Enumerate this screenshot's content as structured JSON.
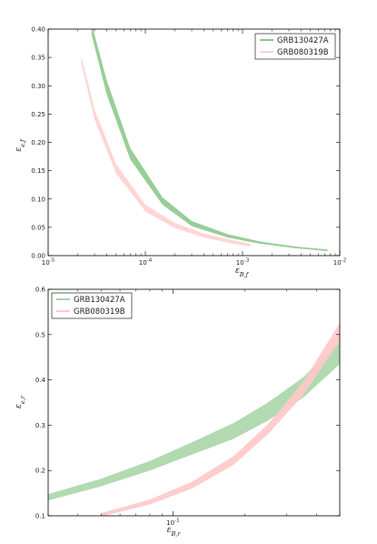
{
  "chart_data": [
    {
      "type": "area",
      "title": "",
      "xlabel": "ε_{B,f}",
      "ylabel": "ε_{e,f}",
      "xscale": "log",
      "xlim": [
        1e-05,
        0.01
      ],
      "ylim": [
        0.0,
        0.4
      ],
      "yticks": [
        "0.00",
        "0.05",
        "0.10",
        "0.15",
        "0.20",
        "0.25",
        "0.30",
        "0.35",
        "0.40"
      ],
      "xticks": [
        {
          "value": 1e-05,
          "base": "10",
          "exp": "-5"
        },
        {
          "value": 0.0001,
          "base": "10",
          "exp": "-4"
        },
        {
          "value": 0.001,
          "base": "10",
          "exp": "-3"
        },
        {
          "value": 0.01,
          "base": "10",
          "exp": "-2"
        }
      ],
      "legend_position": "top-right",
      "series": [
        {
          "name": "GRB130427A",
          "color": "#8cc98c",
          "x": [
            2.8e-05,
            4e-05,
            7e-05,
            0.00015,
            0.0003,
            0.0007,
            0.0015,
            0.0035,
            0.0075
          ],
          "y_low": [
            0.39,
            0.285,
            0.17,
            0.09,
            0.052,
            0.032,
            0.021,
            0.013,
            0.008
          ],
          "y_high": [
            0.41,
            0.31,
            0.19,
            0.103,
            0.061,
            0.038,
            0.025,
            0.016,
            0.011
          ]
        },
        {
          "name": "GRB080319B",
          "color": "#ffd0d0",
          "x": [
            2.2e-05,
            3e-05,
            5e-05,
            0.0001,
            0.0002,
            0.0004,
            0.0008,
            0.0012
          ],
          "y_low": [
            0.338,
            0.24,
            0.145,
            0.078,
            0.049,
            0.032,
            0.021,
            0.016
          ],
          "y_high": [
            0.352,
            0.258,
            0.162,
            0.09,
            0.058,
            0.039,
            0.027,
            0.021
          ]
        }
      ]
    },
    {
      "type": "area",
      "title": "",
      "xlabel": "ε_{B,r}",
      "ylabel": "ε_{e,r}",
      "xscale": "log",
      "xlim": [
        0.03,
        0.5
      ],
      "ylim": [
        0.1,
        0.6
      ],
      "yticks": [
        "0.1",
        "0.2",
        "0.3",
        "0.4",
        "0.5",
        "0.6"
      ],
      "xticks": [
        {
          "value": 0.1,
          "base": "10",
          "exp": "-1"
        }
      ],
      "legend_position": "top-left",
      "series": [
        {
          "name": "GRB130427A",
          "color": "#a8d6a8",
          "x": [
            0.03,
            0.05,
            0.08,
            0.12,
            0.18,
            0.25,
            0.35,
            0.5
          ],
          "y_low": [
            0.134,
            0.165,
            0.2,
            0.235,
            0.27,
            0.31,
            0.36,
            0.435
          ],
          "y_high": [
            0.148,
            0.182,
            0.221,
            0.262,
            0.305,
            0.35,
            0.405,
            0.485
          ]
        },
        {
          "name": "GRB080319B",
          "color": "#ffc8c8",
          "x": [
            0.05,
            0.08,
            0.12,
            0.18,
            0.25,
            0.35,
            0.5
          ],
          "y_low": [
            0.098,
            0.125,
            0.16,
            0.213,
            0.28,
            0.365,
            0.485
          ],
          "y_high": [
            0.106,
            0.136,
            0.175,
            0.232,
            0.302,
            0.395,
            0.525
          ]
        }
      ]
    }
  ]
}
